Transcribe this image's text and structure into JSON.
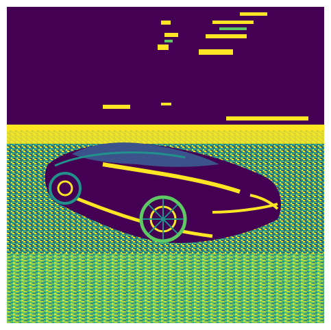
{
  "image": {
    "colors": {
      "sky": "#440154",
      "dark_blue": "#3b528b",
      "teal": "#21918c",
      "green": "#5ec962",
      "yellow": "#fde725"
    },
    "description_icon": "car-on-salt-flats-image"
  }
}
